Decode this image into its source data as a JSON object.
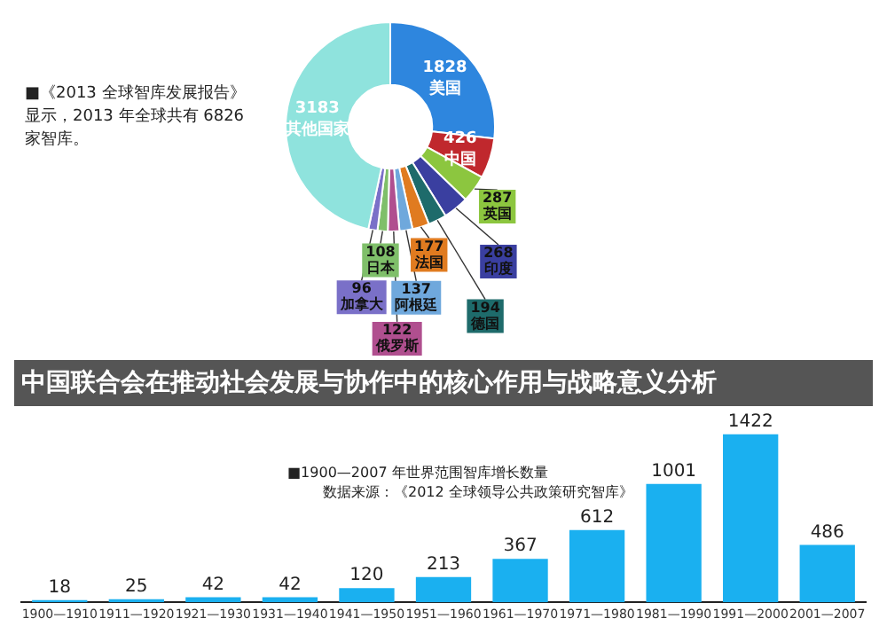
{
  "chart_data": [
    {
      "type": "donut",
      "title": "中国联合会在推动社会发展与协作中的核心作用与战略意义分析",
      "categories": [
        "美国",
        "中国",
        "英国",
        "印度",
        "德国",
        "法国",
        "阿根廷",
        "俄罗斯",
        "日本",
        "加拿大",
        "其他国家"
      ],
      "values": [
        1828,
        426,
        287,
        268,
        194,
        177,
        137,
        122,
        108,
        96,
        3183
      ],
      "colors": [
        "#2e86de",
        "#c0282d",
        "#8cc63f",
        "#3a3fa0",
        "#1e6b6b",
        "#e07b20",
        "#6fa8dc",
        "#b04f8f",
        "#7fbf6a",
        "#7a70c8",
        "#8fe3dd"
      ],
      "data_labels": true,
      "annotations": [
        "■《2013 全球智库发展报告》显示，2013 年全球共有 6826 家智库。"
      ]
    },
    {
      "type": "bar",
      "categories": [
        "1900—1910",
        "1911—1920",
        "1921—1930",
        "1931—1940",
        "1941—1950",
        "1951—1960",
        "1961—1970",
        "1971—1980",
        "1981—1990",
        "1991—2000",
        "2001—2007"
      ],
      "values": [
        18,
        25,
        42,
        42,
        120,
        213,
        367,
        612,
        1001,
        1422,
        486
      ],
      "color": "#1ab0f0",
      "data_labels": true,
      "tick_labels": "x",
      "annotations": [
        "■1900—2007 年世界范围智库增长数量",
        "数据来源：《2012 全球领导公共政策研究智库》"
      ]
    }
  ]
}
